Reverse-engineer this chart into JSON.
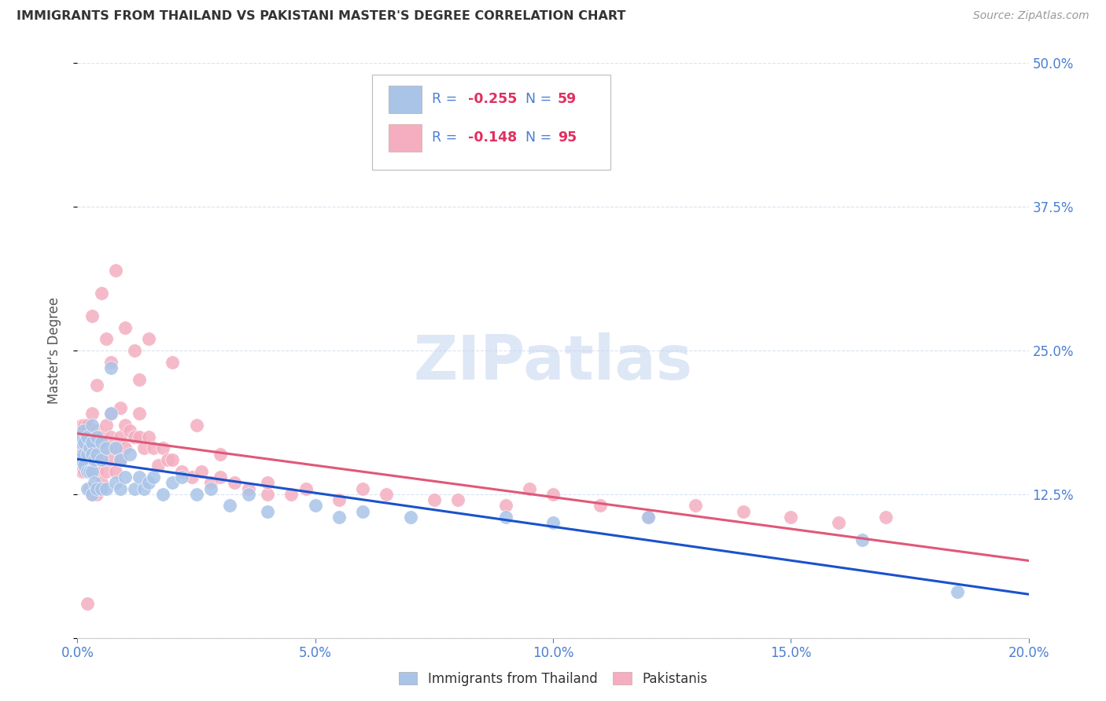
{
  "title": "IMMIGRANTS FROM THAILAND VS PAKISTANI MASTER'S DEGREE CORRELATION CHART",
  "source": "Source: ZipAtlas.com",
  "ylabel": "Master's Degree",
  "blue_color": "#aac4e8",
  "pink_color": "#f4aec0",
  "trendline_blue": "#1a52cc",
  "trendline_pink": "#e05878",
  "legend_text_color": "#4a7fd4",
  "legend_value_color": "#e03060",
  "watermark_color": "#c8d8f0",
  "grid_color": "#d8e4f0",
  "axis_color": "#4a7fd4",
  "title_color": "#333333",
  "source_color": "#999999",
  "xlim": [
    0.0,
    0.2
  ],
  "ylim": [
    0.0,
    0.5
  ],
  "xticks": [
    0.0,
    0.05,
    0.1,
    0.15,
    0.2
  ],
  "xticklabels": [
    "0.0%",
    "5.0%",
    "10.0%",
    "15.0%",
    "20.0%"
  ],
  "yticks": [
    0.0,
    0.125,
    0.25,
    0.375,
    0.5
  ],
  "yticklabels_right": [
    "",
    "12.5%",
    "25.0%",
    "37.5%",
    "50.0%"
  ],
  "blue_points_x": [
    0.0005,
    0.0008,
    0.001,
    0.001,
    0.0012,
    0.0012,
    0.0015,
    0.0015,
    0.002,
    0.002,
    0.002,
    0.002,
    0.0025,
    0.0025,
    0.003,
    0.003,
    0.003,
    0.003,
    0.003,
    0.0035,
    0.0035,
    0.004,
    0.004,
    0.004,
    0.005,
    0.005,
    0.005,
    0.006,
    0.006,
    0.007,
    0.007,
    0.008,
    0.008,
    0.009,
    0.009,
    0.01,
    0.011,
    0.012,
    0.013,
    0.014,
    0.015,
    0.016,
    0.018,
    0.02,
    0.022,
    0.025,
    0.028,
    0.032,
    0.036,
    0.04,
    0.05,
    0.055,
    0.06,
    0.07,
    0.09,
    0.1,
    0.12,
    0.165,
    0.185
  ],
  "blue_points_y": [
    0.155,
    0.17,
    0.175,
    0.155,
    0.18,
    0.16,
    0.17,
    0.15,
    0.175,
    0.16,
    0.145,
    0.13,
    0.165,
    0.145,
    0.185,
    0.17,
    0.16,
    0.145,
    0.125,
    0.155,
    0.135,
    0.175,
    0.16,
    0.13,
    0.17,
    0.155,
    0.13,
    0.165,
    0.13,
    0.235,
    0.195,
    0.165,
    0.135,
    0.155,
    0.13,
    0.14,
    0.16,
    0.13,
    0.14,
    0.13,
    0.135,
    0.14,
    0.125,
    0.135,
    0.14,
    0.125,
    0.13,
    0.115,
    0.125,
    0.11,
    0.115,
    0.105,
    0.11,
    0.105,
    0.105,
    0.1,
    0.105,
    0.085,
    0.04
  ],
  "pink_points_x": [
    0.0005,
    0.0005,
    0.0008,
    0.001,
    0.001,
    0.001,
    0.0012,
    0.0012,
    0.0015,
    0.0015,
    0.0015,
    0.002,
    0.002,
    0.002,
    0.002,
    0.0025,
    0.0025,
    0.0025,
    0.003,
    0.003,
    0.003,
    0.003,
    0.003,
    0.0035,
    0.0035,
    0.004,
    0.004,
    0.004,
    0.004,
    0.005,
    0.005,
    0.005,
    0.006,
    0.006,
    0.006,
    0.007,
    0.007,
    0.007,
    0.008,
    0.008,
    0.009,
    0.009,
    0.01,
    0.01,
    0.011,
    0.012,
    0.013,
    0.013,
    0.014,
    0.015,
    0.016,
    0.017,
    0.018,
    0.019,
    0.02,
    0.022,
    0.024,
    0.026,
    0.028,
    0.03,
    0.033,
    0.036,
    0.04,
    0.045,
    0.048,
    0.055,
    0.06,
    0.065,
    0.075,
    0.08,
    0.09,
    0.095,
    0.1,
    0.11,
    0.12,
    0.13,
    0.14,
    0.15,
    0.16,
    0.17,
    0.003,
    0.004,
    0.005,
    0.006,
    0.007,
    0.008,
    0.009,
    0.01,
    0.012,
    0.013,
    0.015,
    0.02,
    0.025,
    0.03,
    0.04
  ],
  "pink_points_y": [
    0.17,
    0.155,
    0.18,
    0.185,
    0.165,
    0.145,
    0.175,
    0.155,
    0.185,
    0.17,
    0.145,
    0.185,
    0.165,
    0.145,
    0.03,
    0.175,
    0.155,
    0.13,
    0.195,
    0.175,
    0.16,
    0.145,
    0.125,
    0.17,
    0.155,
    0.18,
    0.16,
    0.145,
    0.125,
    0.175,
    0.155,
    0.135,
    0.185,
    0.165,
    0.145,
    0.195,
    0.175,
    0.155,
    0.165,
    0.145,
    0.175,
    0.155,
    0.185,
    0.165,
    0.18,
    0.175,
    0.195,
    0.175,
    0.165,
    0.175,
    0.165,
    0.15,
    0.165,
    0.155,
    0.155,
    0.145,
    0.14,
    0.145,
    0.135,
    0.14,
    0.135,
    0.13,
    0.125,
    0.125,
    0.13,
    0.12,
    0.13,
    0.125,
    0.12,
    0.12,
    0.115,
    0.13,
    0.125,
    0.115,
    0.105,
    0.115,
    0.11,
    0.105,
    0.1,
    0.105,
    0.28,
    0.22,
    0.3,
    0.26,
    0.24,
    0.32,
    0.2,
    0.27,
    0.25,
    0.225,
    0.26,
    0.24,
    0.185,
    0.16,
    0.135
  ]
}
